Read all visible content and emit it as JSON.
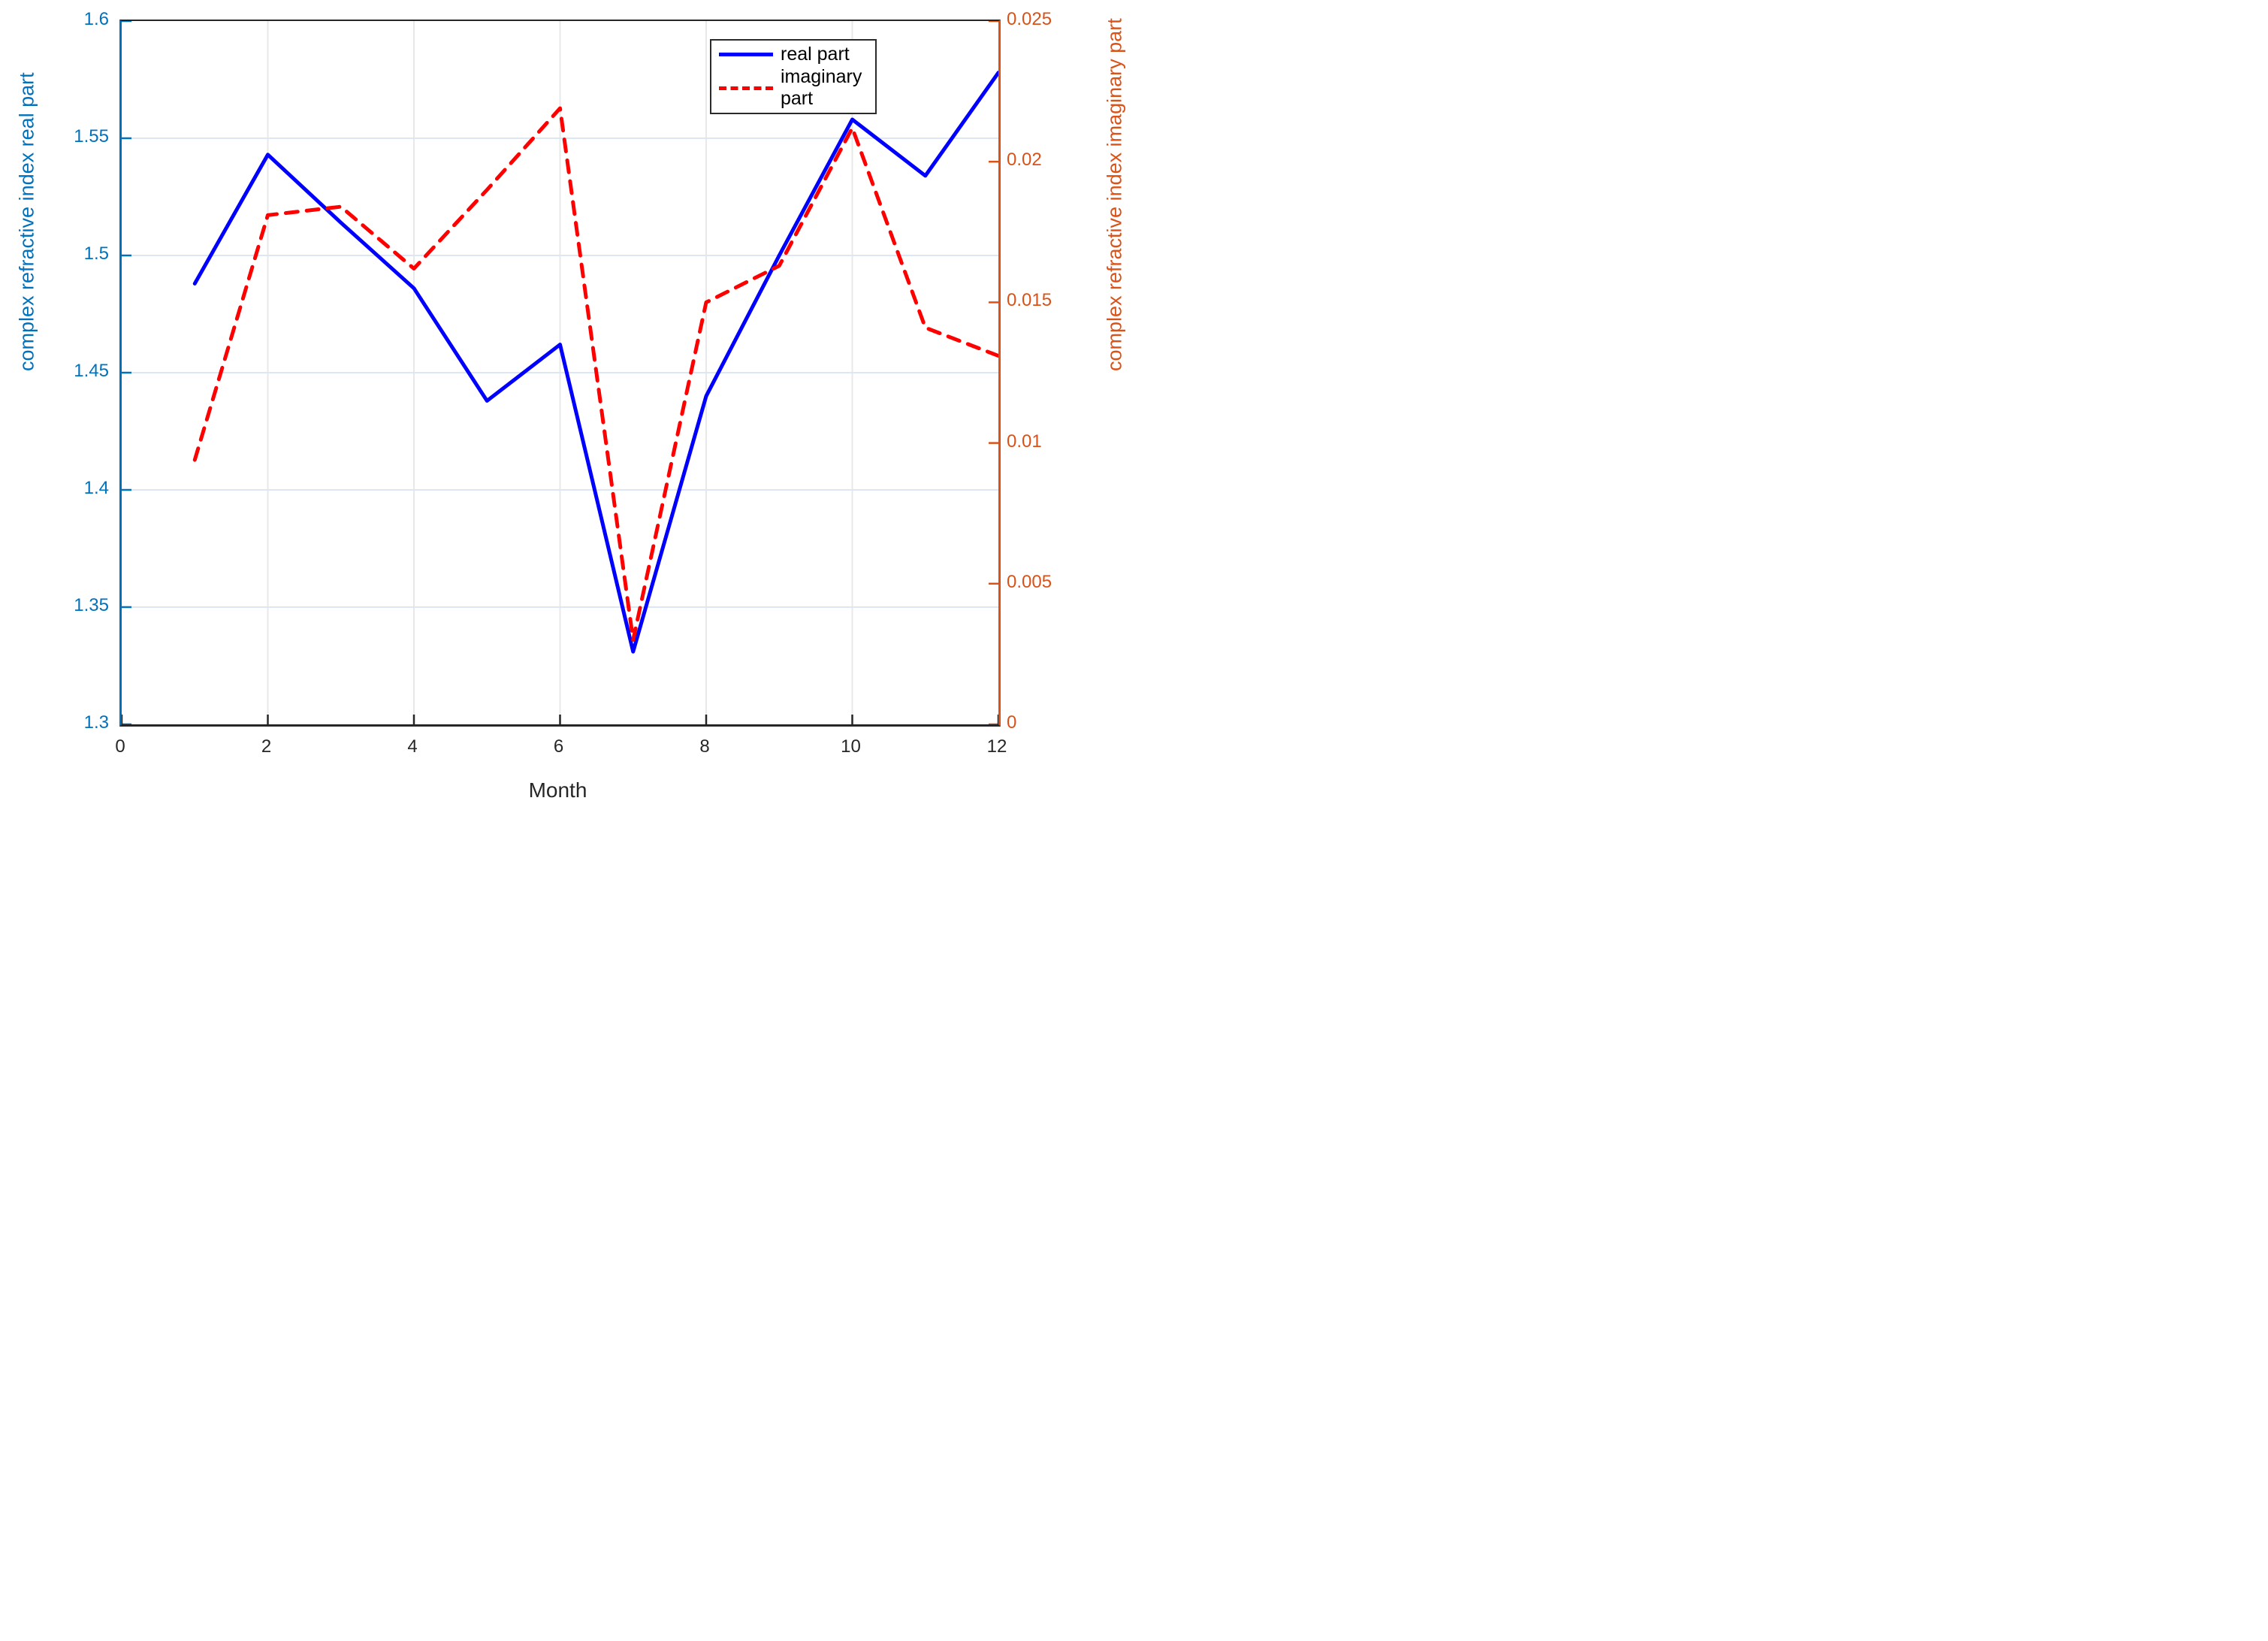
{
  "chart_data": {
    "type": "line",
    "title": "",
    "x": [
      1,
      2,
      3,
      4,
      5,
      6,
      7,
      8,
      9,
      10,
      11,
      12
    ],
    "series": [
      {
        "name": "real part",
        "axis": "left",
        "color": "#0000ff",
        "style": "solid",
        "values": [
          1.488,
          1.543,
          1.514,
          1.486,
          1.438,
          1.462,
          1.331,
          1.44,
          1.5,
          1.558,
          1.534,
          1.578
        ]
      },
      {
        "name": "imaginary part",
        "axis": "right",
        "color": "#ff0000",
        "style": "dashed",
        "values": [
          0.0094,
          0.0181,
          0.0184,
          0.0162,
          0.019,
          0.0219,
          0.003,
          0.015,
          0.0163,
          0.0212,
          0.0141,
          0.0131
        ]
      }
    ],
    "x_axis": {
      "label": "Month",
      "color": "#262626",
      "min": 0,
      "max": 12,
      "ticks": [
        0,
        2,
        4,
        6,
        8,
        10,
        12
      ],
      "tick_labels": [
        "0",
        "2",
        "4",
        "6",
        "8",
        "10",
        "12"
      ]
    },
    "left_axis": {
      "label": "complex refractive index real part",
      "color": "#0072BD",
      "min": 1.3,
      "max": 1.6,
      "ticks": [
        1.3,
        1.35,
        1.4,
        1.45,
        1.5,
        1.55,
        1.6
      ],
      "tick_labels": [
        "1.3",
        "1.35",
        "1.4",
        "1.45",
        "1.5",
        "1.55",
        "1.6"
      ]
    },
    "right_axis": {
      "label": "complex refractive index imaginary part",
      "color": "#D95319",
      "min": 0,
      "max": 0.025,
      "ticks": [
        0,
        0.005,
        0.01,
        0.015,
        0.02,
        0.025
      ],
      "tick_labels": [
        "0",
        "0.005",
        "0.01",
        "0.015",
        "0.02",
        "0.025"
      ]
    },
    "grid": {
      "horizontal": true,
      "vertical": true,
      "horizontal_color": "#dbe7f4",
      "vertical_color": "#e8e8e8"
    },
    "legend": {
      "position": "top-right",
      "entries": [
        "real part",
        "imaginary part"
      ]
    }
  }
}
